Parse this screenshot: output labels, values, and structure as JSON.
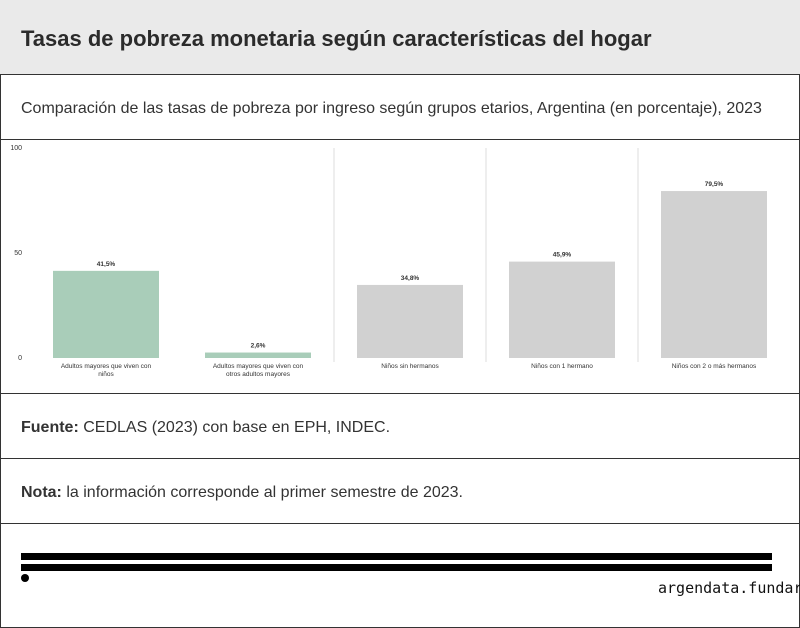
{
  "header": {
    "title": "Tasas de pobreza monetaria según características del hogar"
  },
  "subtitle": "Comparación de las tasas de pobreza por ingreso según grupos etarios, Argentina (en porcentaje), 2023",
  "source": {
    "label": "Fuente:",
    "text": " CEDLAS (2023) con base en EPH, INDEC."
  },
  "note": {
    "label": "Nota:",
    "text": " la información corresponde al primer semestre de 2023."
  },
  "footer": {
    "brand": "argendata.fundar"
  },
  "colors": {
    "highlight": "#a9cdb9",
    "muted": "#d1d1d1",
    "divider": "#dddddd"
  },
  "chart_data": {
    "type": "bar",
    "categories": [
      "Adultos mayores que viven con niños",
      "Adultos mayores que viven con otros adultos mayores",
      "Niños sin hermanos",
      "Niños con 1 hermano",
      "Niños con 2 o más hermanos"
    ],
    "values": [
      41.5,
      2.6,
      34.8,
      45.9,
      79.5
    ],
    "value_labels": [
      "41,5%",
      "2,6%",
      "34,8%",
      "45,9%",
      "79,5%"
    ],
    "highlight": [
      true,
      true,
      false,
      false,
      false
    ],
    "ylim": [
      0,
      100
    ],
    "yticks": [
      "0",
      "50",
      "100"
    ],
    "title": "",
    "xlabel": "",
    "ylabel": ""
  }
}
